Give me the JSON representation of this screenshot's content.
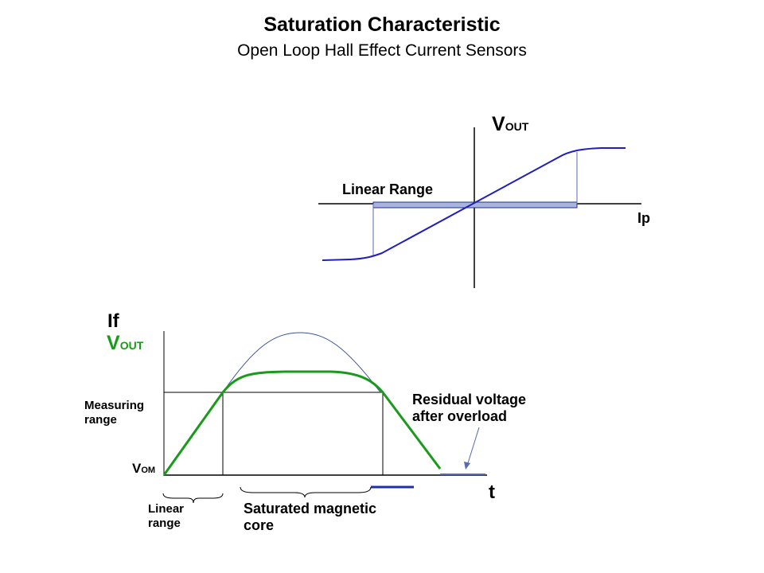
{
  "slide": {
    "title": "Saturation Characteristic",
    "subtitle": "Open Loop Hall Effect Current Sensors"
  },
  "top_diagram": {
    "y_axis_label_main": "V",
    "y_axis_label_sub": "OUT",
    "x_axis_label": "Ip",
    "linear_range_label": "Linear Range",
    "colors": {
      "curve": "#1f1fbf",
      "range_bar": "#aab4dc",
      "axis": "#000000"
    }
  },
  "bottom_diagram": {
    "y_label_if": "If",
    "y_label_vout_main": "V",
    "y_label_vout_sub": "OUT",
    "measuring_range_label": [
      "Measuring",
      "range"
    ],
    "vom_main": "V",
    "vom_sub": "OM",
    "x_axis_label": "t",
    "residual_label": [
      "Residual voltage",
      "after overload"
    ],
    "linear_range_brace_label": [
      "Linear",
      "range"
    ],
    "saturated_label": [
      "Saturated magnetic",
      "core"
    ],
    "colors": {
      "vout_curve": "#1a9a1a",
      "ideal_curve": "#3a56a0",
      "legend_line": "#1f2fa8",
      "vout_label": "#1a9a1a"
    }
  }
}
